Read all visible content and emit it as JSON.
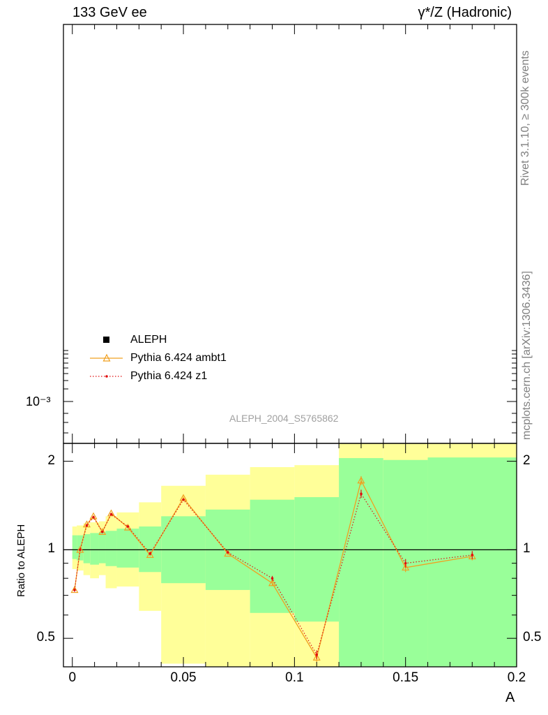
{
  "header": {
    "left_title": "133 GeV ee",
    "right_title": "γ*/Z (Hadronic)"
  },
  "side_notes": {
    "rivet": "Rivet 3.1.10, ≥ 300k events",
    "mcplots": "mcplots.cern.ch [arXiv:1306.3436]"
  },
  "analysis_label": "ALEPH_2004_S5765862",
  "legend": {
    "placement": "lower-left of upper panel",
    "entries": [
      {
        "label": "ALEPH",
        "marker": "filled-square",
        "color": "#000000"
      },
      {
        "label": "Pythia 6.424 ambt1",
        "marker": "open-triangle",
        "color": "#f0a020"
      },
      {
        "label": "Pythia 6.424 z1",
        "marker": "dot-dotted-line",
        "color": "#e01010"
      }
    ]
  },
  "colors": {
    "band_inner": "#99ff99",
    "band_outer": "#ffff99",
    "ambt1": "#f0a020",
    "z1": "#e01010"
  },
  "chart_data": [
    {
      "type": "line",
      "panel": "main",
      "scale": "log",
      "yticks": [
        {
          "value": 0.001,
          "label": "10⁻³"
        }
      ],
      "series": []
    },
    {
      "type": "line",
      "panel": "ratio",
      "xlabel": "A",
      "ylabel": "Ratio to ALEPH",
      "xlim": [
        -0.004,
        0.2
      ],
      "ylim": [
        0.4,
        2.3
      ],
      "y_scale": "log",
      "xticks": [
        0,
        0.05,
        0.1,
        0.15,
        0.2
      ],
      "xtick_labels": [
        "0",
        "0.05",
        "0.1",
        "0.15",
        "0.2"
      ],
      "yticks": [
        0.5,
        1,
        2
      ],
      "ytick_labels": [
        "0.5",
        "1",
        "2"
      ],
      "reference_line": 1.0,
      "bands": [
        {
          "x0": 0.0,
          "x1": 0.002,
          "inner": [
            0.93,
            1.12
          ],
          "outer": [
            0.86,
            1.2
          ]
        },
        {
          "x0": 0.002,
          "x1": 0.005,
          "inner": [
            0.92,
            1.12
          ],
          "outer": [
            0.85,
            1.21
          ]
        },
        {
          "x0": 0.005,
          "x1": 0.008,
          "inner": [
            0.9,
            1.13
          ],
          "outer": [
            0.82,
            1.23
          ]
        },
        {
          "x0": 0.008,
          "x1": 0.012,
          "inner": [
            0.89,
            1.14
          ],
          "outer": [
            0.8,
            1.24
          ]
        },
        {
          "x0": 0.012,
          "x1": 0.015,
          "inner": [
            0.9,
            1.15
          ],
          "outer": [
            0.82,
            1.25
          ]
        },
        {
          "x0": 0.015,
          "x1": 0.02,
          "inner": [
            0.88,
            1.16
          ],
          "outer": [
            0.74,
            1.3
          ]
        },
        {
          "x0": 0.02,
          "x1": 0.03,
          "inner": [
            0.87,
            1.18
          ],
          "outer": [
            0.75,
            1.34
          ]
        },
        {
          "x0": 0.03,
          "x1": 0.04,
          "inner": [
            0.84,
            1.2
          ],
          "outer": [
            0.62,
            1.45
          ]
        },
        {
          "x0": 0.04,
          "x1": 0.06,
          "inner": [
            0.77,
            1.3
          ],
          "outer": [
            0.41,
            1.65
          ]
        },
        {
          "x0": 0.06,
          "x1": 0.08,
          "inner": [
            0.73,
            1.37
          ],
          "outer": [
            0.36,
            1.8
          ]
        },
        {
          "x0": 0.08,
          "x1": 0.1,
          "inner": [
            0.61,
            1.48
          ],
          "outer": [
            0.31,
            1.91
          ]
        },
        {
          "x0": 0.1,
          "x1": 0.12,
          "inner": [
            0.57,
            1.51
          ],
          "outer": [
            0.3,
            1.94
          ]
        },
        {
          "x0": 0.12,
          "x1": 0.14,
          "inner": [
            0.2,
            2.05
          ],
          "outer": [
            0.1,
            2.6
          ]
        },
        {
          "x0": 0.14,
          "x1": 0.16,
          "inner": [
            0.2,
            2.02
          ],
          "outer": [
            0.1,
            2.6
          ]
        },
        {
          "x0": 0.16,
          "x1": 0.2,
          "inner": [
            0.2,
            2.06
          ],
          "outer": [
            0.1,
            2.6
          ]
        }
      ],
      "series": [
        {
          "name": "Pythia 6.424 ambt1",
          "x": [
            0.001,
            0.0035,
            0.0065,
            0.0095,
            0.0135,
            0.0175,
            0.025,
            0.035,
            0.05,
            0.07,
            0.09,
            0.11,
            0.13,
            0.15,
            0.18
          ],
          "y": [
            0.73,
            1.0,
            1.22,
            1.3,
            1.15,
            1.33,
            1.19,
            0.96,
            1.5,
            0.97,
            0.77,
            0.43,
            1.72,
            0.87,
            0.95
          ],
          "err": [
            0.01,
            0.01,
            0.01,
            0.01,
            0.01,
            0.01,
            0.01,
            0.01,
            0.015,
            0.01,
            0.015,
            0.015,
            0.06,
            0.03,
            0.03
          ]
        },
        {
          "name": "Pythia 6.424 z1",
          "x": [
            0.001,
            0.0035,
            0.0065,
            0.0095,
            0.0135,
            0.0175,
            0.025,
            0.035,
            0.05,
            0.07,
            0.09,
            0.11,
            0.13,
            0.15,
            0.18
          ],
          "y": [
            0.73,
            1.0,
            1.21,
            1.29,
            1.15,
            1.32,
            1.2,
            0.97,
            1.48,
            0.98,
            0.8,
            0.44,
            1.55,
            0.9,
            0.96
          ],
          "err": [
            0.01,
            0.01,
            0.01,
            0.01,
            0.01,
            0.01,
            0.01,
            0.01,
            0.015,
            0.01,
            0.015,
            0.015,
            0.05,
            0.03,
            0.03
          ]
        }
      ]
    }
  ]
}
